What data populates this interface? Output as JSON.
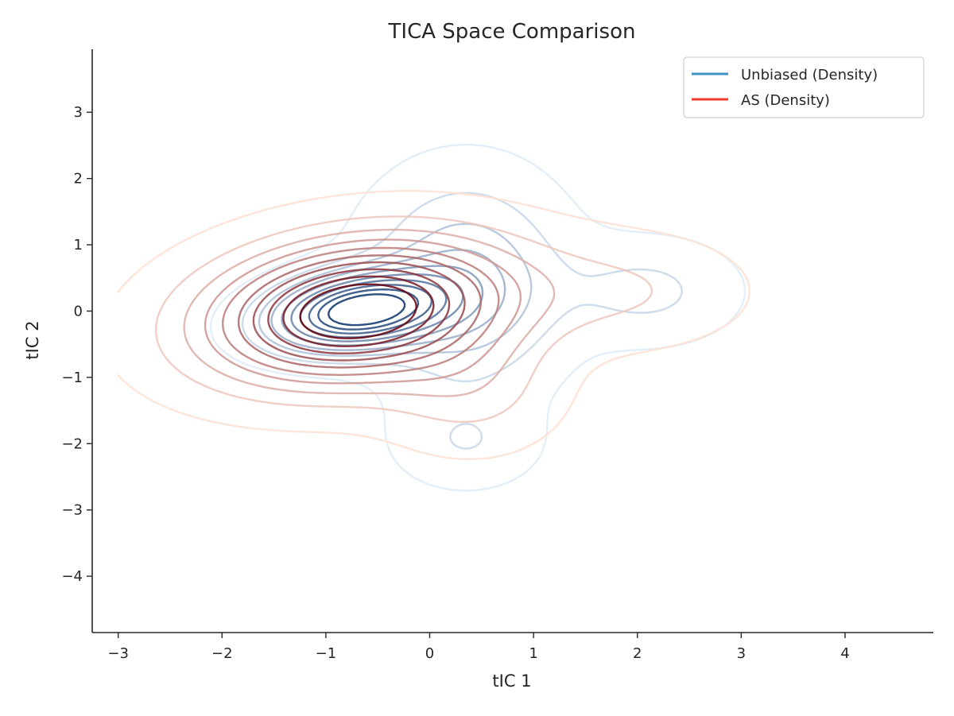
{
  "chart_data": {
    "type": "contour",
    "title": "TICA Space Comparison",
    "xlabel": "tIC 1",
    "ylabel": "tIC 2",
    "xlim": [
      -3.25,
      4.85
    ],
    "ylim": [
      -4.85,
      3.95
    ],
    "xticks": [
      {
        "value": -3,
        "label": "−3"
      },
      {
        "value": -2,
        "label": "−2"
      },
      {
        "value": -1,
        "label": "−1"
      },
      {
        "value": 0,
        "label": "0"
      },
      {
        "value": 1,
        "label": "1"
      },
      {
        "value": 2,
        "label": "2"
      },
      {
        "value": 3,
        "label": "3"
      },
      {
        "value": 4,
        "label": "4"
      }
    ],
    "yticks": [
      {
        "value": -4,
        "label": "−4"
      },
      {
        "value": -3,
        "label": "−3"
      },
      {
        "value": -2,
        "label": "−2"
      },
      {
        "value": -1,
        "label": "−1"
      },
      {
        "value": 0,
        "label": "0"
      },
      {
        "value": 1,
        "label": "1"
      },
      {
        "value": 2,
        "label": "2"
      },
      {
        "value": 3,
        "label": "3"
      }
    ],
    "grid": false,
    "legend_position": "top-right",
    "contour_levels": 10,
    "series": [
      {
        "name": "Unbiased (Density)",
        "legend_color": "#4292c6",
        "palette": "Blues",
        "palette_range": [
          "#deebf7",
          "#08306b"
        ],
        "modes": [
          {
            "center": [
              -0.7,
              0.0
            ],
            "sigma": [
              0.55,
              0.38
            ],
            "rho": 0.25,
            "weight": 1.0
          },
          {
            "center": [
              0.35,
              0.4
            ],
            "sigma": [
              0.6,
              1.0
            ],
            "rho": 0.0,
            "weight": 0.35
          },
          {
            "center": [
              2.1,
              0.3
            ],
            "sigma": [
              0.55,
              0.5
            ],
            "rho": 0.0,
            "weight": 0.16
          },
          {
            "center": [
              0.35,
              -2.0
            ],
            "sigma": [
              0.45,
              0.45
            ],
            "rho": 0.0,
            "weight": 0.12
          }
        ]
      },
      {
        "name": "AS (Density)",
        "legend_color": "#ef3b2c",
        "palette": "Reds",
        "palette_range": [
          "#fee0d2",
          "#67000d"
        ],
        "modes": [
          {
            "center": [
              -0.7,
              0.0
            ],
            "sigma": [
              0.95,
              0.7
            ],
            "rho": 0.2,
            "weight": 1.0
          },
          {
            "center": [
              0.4,
              -1.2
            ],
            "sigma": [
              0.55,
              0.6
            ],
            "rho": 0.0,
            "weight": 0.15
          },
          {
            "center": [
              1.9,
              0.3
            ],
            "sigma": [
              0.75,
              0.55
            ],
            "rho": 0.0,
            "weight": 0.12
          }
        ]
      }
    ]
  }
}
